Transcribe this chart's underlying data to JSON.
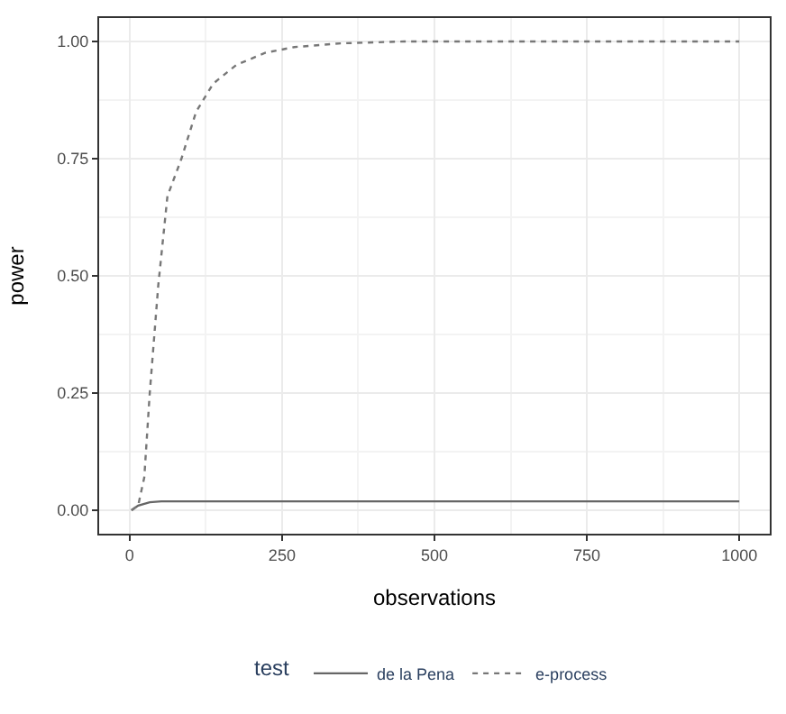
{
  "chart_data": {
    "type": "line",
    "xlabel": "observations",
    "ylabel": "power",
    "legend_title": "test",
    "legend": "bottom",
    "grid": true,
    "xlim": [
      -50,
      1050
    ],
    "xticks": [
      0,
      250,
      500,
      750,
      1000
    ],
    "ylim": [
      -0.05,
      1.05
    ],
    "yticks": [
      {
        "value": 0,
        "label": "0.00"
      },
      {
        "value": 0.25,
        "label": "0.25"
      },
      {
        "value": 0.5,
        "label": "0.50"
      },
      {
        "value": 0.75,
        "label": "0.75"
      },
      {
        "value": 1,
        "label": "1.00"
      }
    ],
    "series": [
      {
        "name": "de la Pena",
        "color": "#666666",
        "line_style": "solid",
        "x": [
          3,
          14,
          33,
          52,
          100,
          250,
          500,
          750,
          1000
        ],
        "values": [
          0,
          0.01,
          0.017,
          0.019,
          0.019,
          0.019,
          0.019,
          0.019,
          0.019
        ]
      },
      {
        "name": "e-process",
        "color": "#777777",
        "line_style": "dotted",
        "x": [
          3,
          14,
          24,
          33,
          47,
          62,
          85,
          109,
          137,
          175,
          223,
          270,
          346,
          450,
          600,
          800,
          1000
        ],
        "values": [
          0,
          0.01,
          0.07,
          0.25,
          0.48,
          0.67,
          0.75,
          0.85,
          0.91,
          0.95,
          0.976,
          0.988,
          0.996,
          1.0,
          1.0,
          1.0,
          1.0
        ]
      }
    ]
  }
}
